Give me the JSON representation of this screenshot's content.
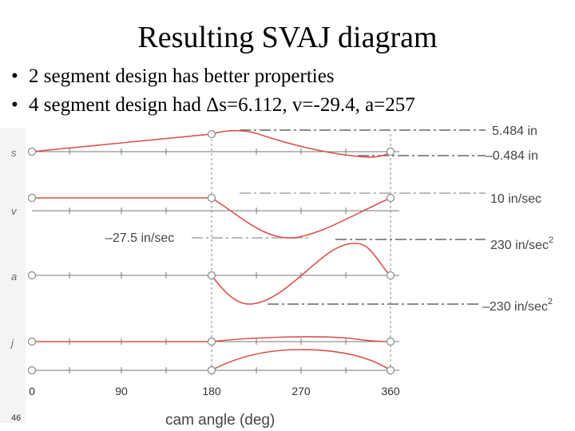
{
  "title": "Resulting SVAJ diagram",
  "bullets": [
    "2 segment design has better properties",
    "4 segment design had Δs=6.112, v=-29.4, a=257"
  ],
  "diagram": {
    "row_labels": [
      "s",
      "v",
      "a",
      "j"
    ],
    "value_labels": {
      "s_max": "5.484 in",
      "s_min": "–0.484 in",
      "v_max": "10 in/sec",
      "v_min": "–27.5 in/sec",
      "a_max": "230 in/sec",
      "a_min": "–230 in/sec",
      "a_unit_exp": "2"
    },
    "x_ticks": [
      "0",
      "90",
      "180",
      "270",
      "360"
    ],
    "x_axis_title": "cam angle (deg)",
    "curve_color": "#d9534f"
  },
  "page_number": "46"
}
